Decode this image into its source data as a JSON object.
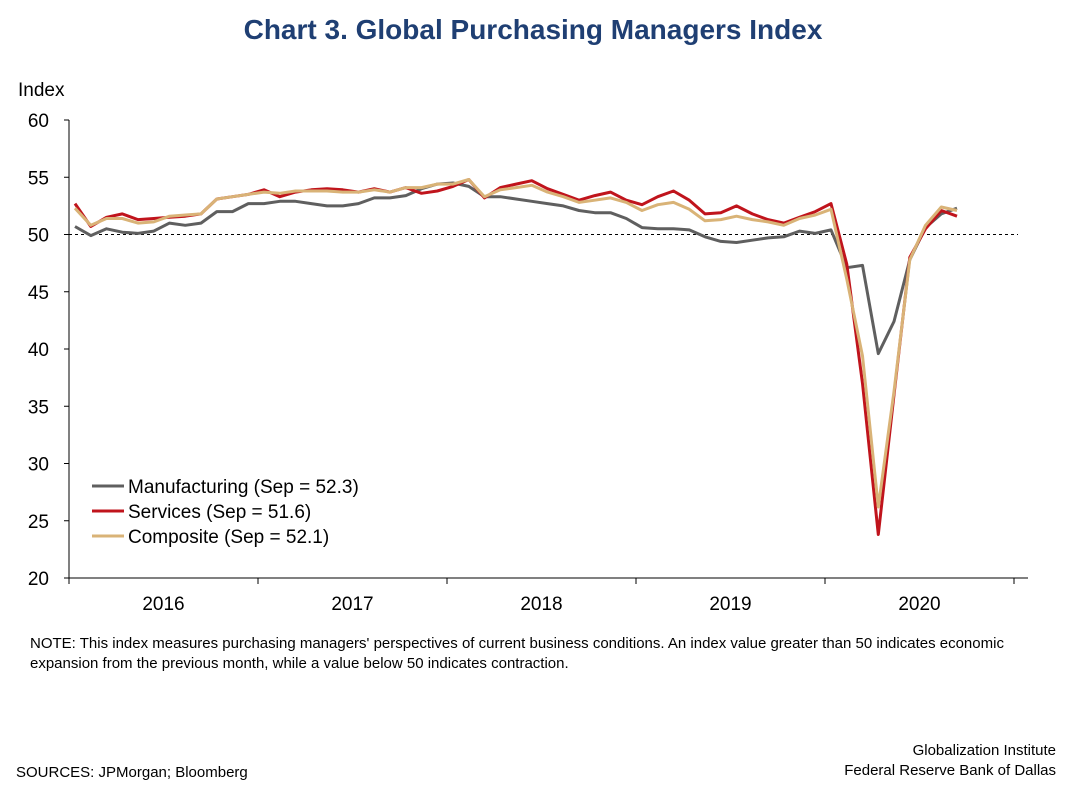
{
  "title": "Chart 3. Global Purchasing Managers Index",
  "note": "NOTE: This index measures purchasing managers' perspectives of current business conditions. An index value greater than 50 indicates economic expansion from the previous month, while a value below 50 indicates contraction.",
  "sources": "SOURCES: JPMorgan; Bloomberg",
  "credit": [
    "Globalization Institute",
    "Federal Reserve Bank of Dallas"
  ],
  "colors": {
    "Manufacturing": "#5f5f5f",
    "Services": "#c0141c",
    "Composite": "#d9b377",
    "title": "#1f3f73"
  },
  "chart_data": {
    "type": "line",
    "title": "Chart 3. Global Purchasing Managers Index",
    "ylabel": "Index",
    "xlabel": "",
    "ylim": [
      20,
      60
    ],
    "yticks": [
      20,
      25,
      30,
      35,
      40,
      45,
      50,
      55,
      60
    ],
    "year_labels": [
      "2016",
      "2017",
      "2018",
      "2019",
      "2020"
    ],
    "reference_line": 50,
    "legend_position": "lower-left",
    "grid": false,
    "x": [
      "2016-01",
      "2016-02",
      "2016-03",
      "2016-04",
      "2016-05",
      "2016-06",
      "2016-07",
      "2016-08",
      "2016-09",
      "2016-10",
      "2016-11",
      "2016-12",
      "2017-01",
      "2017-02",
      "2017-03",
      "2017-04",
      "2017-05",
      "2017-06",
      "2017-07",
      "2017-08",
      "2017-09",
      "2017-10",
      "2017-11",
      "2017-12",
      "2018-01",
      "2018-02",
      "2018-03",
      "2018-04",
      "2018-05",
      "2018-06",
      "2018-07",
      "2018-08",
      "2018-09",
      "2018-10",
      "2018-11",
      "2018-12",
      "2019-01",
      "2019-02",
      "2019-03",
      "2019-04",
      "2019-05",
      "2019-06",
      "2019-07",
      "2019-08",
      "2019-09",
      "2019-10",
      "2019-11",
      "2019-12",
      "2020-01",
      "2020-02",
      "2020-03",
      "2020-04",
      "2020-05",
      "2020-06",
      "2020-07",
      "2020-08",
      "2020-09"
    ],
    "series": [
      {
        "name": "Manufacturing",
        "legend": "Manufacturing (Sep = 52.3)",
        "values": [
          50.7,
          49.9,
          50.5,
          50.2,
          50.1,
          50.3,
          51.0,
          50.8,
          51.0,
          52.0,
          52.0,
          52.7,
          52.7,
          52.9,
          52.9,
          52.7,
          52.5,
          52.5,
          52.7,
          53.2,
          53.2,
          53.4,
          54.0,
          54.4,
          54.5,
          54.2,
          53.3,
          53.3,
          53.1,
          52.9,
          52.7,
          52.5,
          52.1,
          51.9,
          51.9,
          51.4,
          50.6,
          50.5,
          50.5,
          50.4,
          49.8,
          49.4,
          49.3,
          49.5,
          49.7,
          49.8,
          50.3,
          50.1,
          50.4,
          47.1,
          47.3,
          39.6,
          42.4,
          47.8,
          50.6,
          51.8,
          52.3
        ]
      },
      {
        "name": "Services",
        "legend": "Services (Sep = 51.6)",
        "values": [
          52.7,
          50.7,
          51.5,
          51.8,
          51.3,
          51.4,
          51.5,
          51.6,
          51.8,
          53.1,
          53.3,
          53.5,
          53.9,
          53.3,
          53.7,
          53.9,
          54.0,
          53.9,
          53.7,
          54.0,
          53.7,
          54.1,
          53.6,
          53.8,
          54.2,
          54.8,
          53.2,
          54.1,
          54.4,
          54.7,
          54.0,
          53.5,
          53.0,
          53.4,
          53.7,
          53.0,
          52.6,
          53.3,
          53.8,
          53.0,
          51.8,
          51.9,
          52.5,
          51.8,
          51.3,
          51.0,
          51.5,
          52.0,
          52.7,
          47.4,
          37.0,
          23.8,
          36.0,
          48.0,
          50.5,
          52.1,
          51.6
        ]
      },
      {
        "name": "Composite",
        "legend": "Composite (Sep = 52.1)",
        "values": [
          52.3,
          50.8,
          51.4,
          51.4,
          51.0,
          51.1,
          51.6,
          51.7,
          51.8,
          53.1,
          53.3,
          53.5,
          53.7,
          53.6,
          53.8,
          53.8,
          53.8,
          53.7,
          53.7,
          53.9,
          53.7,
          54.1,
          54.1,
          54.4,
          54.4,
          54.8,
          53.3,
          53.9,
          54.1,
          54.3,
          53.7,
          53.3,
          52.8,
          53.0,
          53.2,
          52.8,
          52.1,
          52.6,
          52.8,
          52.2,
          51.2,
          51.3,
          51.6,
          51.3,
          51.1,
          50.8,
          51.4,
          51.7,
          52.2,
          46.1,
          39.4,
          26.2,
          36.3,
          47.8,
          50.8,
          52.4,
          52.1
        ]
      }
    ]
  }
}
